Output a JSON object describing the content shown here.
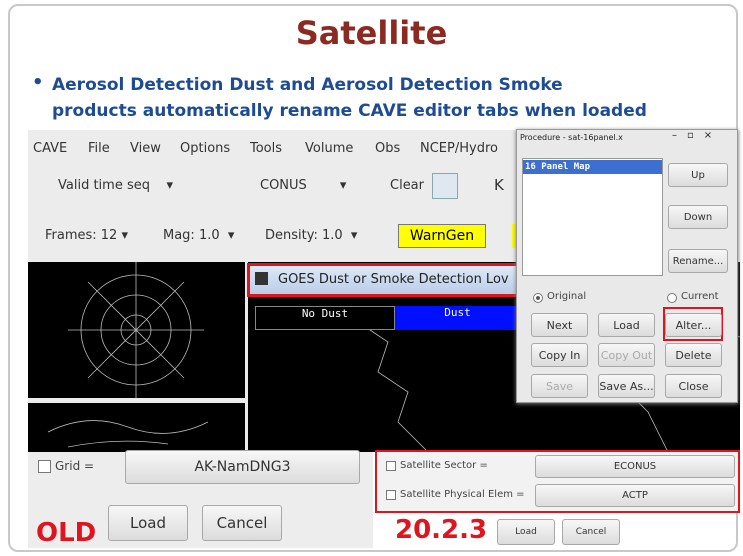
{
  "slide": {
    "title": "Satellite",
    "bullet": "Aerosol Detection Dust and Aerosol Detection Smoke products automatically rename CAVE editor tabs when loaded"
  },
  "cave": {
    "menu": [
      "CAVE",
      "File",
      "View",
      "Options",
      "Tools",
      "Volume",
      "Obs",
      "NCEP/Hydro"
    ],
    "toolbar": {
      "time": "Valid time seq",
      "scale": "CONUS",
      "clear": "Clear",
      "frames": "Frames: 12",
      "mag": "Mag: 1.0",
      "density": "Density: 1.0",
      "warngen": "WarnGen"
    },
    "editor_tab": "GOES Dust or Smoke Detection Lov",
    "colorbar": [
      "No Dust",
      "Dust"
    ]
  },
  "procedure": {
    "title": "Procedure - sat-16panel.x",
    "items": [
      "16 Panel Map"
    ],
    "side_buttons": [
      "Up",
      "Down",
      "Rename..."
    ],
    "radios": [
      "Original",
      "Current"
    ],
    "buttons": [
      [
        "Next",
        "Load",
        "Alter..."
      ],
      [
        "Copy In",
        "Copy Out",
        "Delete"
      ],
      [
        "Save",
        "Save As...",
        "Close"
      ]
    ]
  },
  "old": {
    "label": "OLD",
    "field": "Grid =",
    "value": "AK-NamDNG3",
    "buttons": [
      "Load",
      "Cancel"
    ]
  },
  "new": {
    "label": "20.2.3",
    "fields": [
      {
        "label": "Satellite Sector =",
        "value": "ECONUS"
      },
      {
        "label": "Satellite Physical Elem =",
        "value": "ACTP"
      }
    ],
    "buttons": [
      "Load",
      "Cancel"
    ]
  }
}
